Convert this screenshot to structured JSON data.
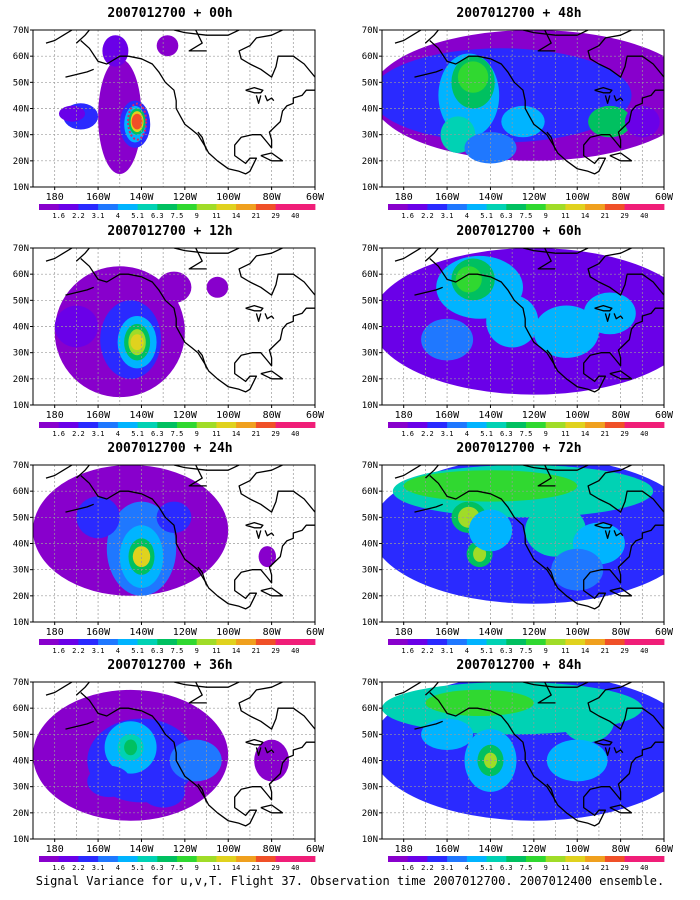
{
  "figure": {
    "caption": "Signal Variance for u,v,T. Flight 37. Observation time 2007012700. 2007012400 ensemble.",
    "colorbar_labels": [
      "1.6",
      "2.2",
      "3.1",
      "4",
      "5.1",
      "6.3",
      "7.5",
      "9",
      "11",
      "14",
      "21",
      "29",
      "40"
    ],
    "colorbar_colors": [
      "#8800cc",
      "#6a00e8",
      "#2a2aff",
      "#1f78ff",
      "#00b4ff",
      "#00d2b4",
      "#00c060",
      "#30d830",
      "#a0dc28",
      "#e0d21e",
      "#f0a01e",
      "#f05028",
      "#f01e78"
    ],
    "lat_labels": [
      "10N",
      "20N",
      "30N",
      "40N",
      "50N",
      "60N",
      "70N"
    ],
    "lon_labels": [
      "180",
      "160W",
      "140W",
      "120W",
      "100W",
      "80W",
      "60W"
    ],
    "lon_range": [
      -190,
      -60
    ],
    "lat_range": [
      10,
      70
    ]
  },
  "panels": [
    {
      "title": "2007012700 + 00h"
    },
    {
      "title": "2007012700 + 48h"
    },
    {
      "title": "2007012700 + 12h"
    },
    {
      "title": "2007012700 + 60h"
    },
    {
      "title": "2007012700 + 24h"
    },
    {
      "title": "2007012700 + 72h"
    },
    {
      "title": "2007012700 + 36h"
    },
    {
      "title": "2007012700 + 84h"
    }
  ],
  "map_layers": {
    "fields": [
      [
        [
          -150,
          37,
          10,
          22,
          0
        ],
        [
          -143,
          34,
          7,
          9,
          2
        ],
        [
          -143,
          34,
          5,
          7,
          4
        ],
        [
          -142,
          35,
          4,
          5,
          6
        ],
        [
          -142,
          35,
          3,
          4,
          9
        ],
        [
          -142,
          35,
          2.5,
          3,
          11
        ],
        [
          -168,
          37,
          8,
          5,
          2
        ],
        [
          -172,
          38,
          6,
          3,
          1
        ],
        [
          -128,
          64,
          5,
          4,
          0
        ],
        [
          -152,
          62,
          6,
          6,
          1
        ]
      ],
      [
        [
          -120,
          45,
          75,
          25,
          0
        ],
        [
          -135,
          45,
          60,
          18,
          2
        ],
        [
          -150,
          45,
          14,
          16,
          4
        ],
        [
          -148,
          50,
          10,
          10,
          6
        ],
        [
          -148,
          52,
          7,
          6,
          7
        ],
        [
          -155,
          30,
          8,
          7,
          5
        ],
        [
          -85,
          35,
          10,
          6,
          6
        ],
        [
          -125,
          35,
          10,
          6,
          4
        ],
        [
          -140,
          25,
          12,
          6,
          3
        ],
        [
          -70,
          35,
          8,
          6,
          1
        ]
      ],
      [
        [
          -150,
          38,
          30,
          25,
          0
        ],
        [
          -145,
          35,
          14,
          15,
          2
        ],
        [
          -142,
          34,
          9,
          10,
          4
        ],
        [
          -142,
          34,
          6,
          7,
          6
        ],
        [
          -142,
          34,
          4,
          5,
          8
        ],
        [
          -142,
          34,
          3,
          3,
          9
        ],
        [
          -170,
          40,
          10,
          8,
          1
        ],
        [
          -125,
          55,
          8,
          6,
          0
        ],
        [
          -105,
          55,
          5,
          4,
          0
        ]
      ],
      [
        [
          -120,
          42,
          75,
          28,
          1
        ],
        [
          -145,
          55,
          20,
          12,
          4
        ],
        [
          -148,
          58,
          10,
          8,
          6
        ],
        [
          -150,
          58,
          6,
          5,
          7
        ],
        [
          -130,
          42,
          12,
          10,
          4
        ],
        [
          -105,
          38,
          15,
          10,
          4
        ],
        [
          -85,
          45,
          12,
          8,
          4
        ],
        [
          -160,
          35,
          12,
          8,
          3
        ]
      ],
      [
        [
          -145,
          45,
          45,
          25,
          0
        ],
        [
          -140,
          38,
          16,
          18,
          3
        ],
        [
          -140,
          35,
          10,
          12,
          4
        ],
        [
          -140,
          35,
          6,
          7,
          6
        ],
        [
          -140,
          35,
          4,
          4,
          9
        ],
        [
          -160,
          50,
          10,
          8,
          2
        ],
        [
          -125,
          50,
          8,
          6,
          2
        ],
        [
          -82,
          35,
          4,
          4,
          0
        ]
      ],
      [
        [
          -120,
          45,
          75,
          28,
          2
        ],
        [
          -125,
          60,
          60,
          10,
          5
        ],
        [
          -140,
          62,
          40,
          6,
          7
        ],
        [
          -150,
          50,
          8,
          6,
          6
        ],
        [
          -150,
          50,
          5,
          4,
          8
        ],
        [
          -145,
          36,
          6,
          5,
          6
        ],
        [
          -145,
          36,
          3,
          3,
          8
        ],
        [
          -140,
          45,
          10,
          8,
          4
        ],
        [
          -110,
          45,
          14,
          10,
          5
        ],
        [
          -90,
          40,
          12,
          8,
          4
        ],
        [
          -100,
          30,
          12,
          8,
          3
        ]
      ],
      [
        [
          -145,
          42,
          45,
          25,
          0
        ],
        [
          -140,
          40,
          25,
          16,
          2
        ],
        [
          -145,
          45,
          12,
          10,
          4
        ],
        [
          -145,
          45,
          6,
          5,
          5
        ],
        [
          -145,
          45,
          3,
          3,
          6
        ],
        [
          -115,
          40,
          12,
          8,
          3
        ],
        [
          -155,
          32,
          10,
          6,
          2
        ],
        [
          -130,
          28,
          10,
          6,
          2
        ],
        [
          -80,
          40,
          8,
          8,
          0
        ]
      ],
      [
        [
          -120,
          45,
          75,
          28,
          2
        ],
        [
          -130,
          60,
          60,
          10,
          5
        ],
        [
          -145,
          62,
          25,
          5,
          7
        ],
        [
          -140,
          40,
          12,
          12,
          4
        ],
        [
          -140,
          40,
          6,
          6,
          6
        ],
        [
          -140,
          40,
          3,
          3,
          8
        ],
        [
          -95,
          55,
          12,
          8,
          5
        ],
        [
          -100,
          40,
          14,
          8,
          4
        ],
        [
          -160,
          50,
          12,
          6,
          4
        ]
      ]
    ],
    "coast": [
      [
        [
          -168,
          66
        ],
        [
          -164,
          63
        ],
        [
          -160,
          58
        ],
        [
          -156,
          57
        ],
        [
          -150,
          60
        ],
        [
          -146,
          60
        ],
        [
          -140,
          59
        ],
        [
          -135,
          57
        ],
        [
          -132,
          54
        ],
        [
          -129,
          50
        ],
        [
          -125,
          47
        ],
        [
          -124,
          43
        ],
        [
          -124,
          40
        ],
        [
          -122,
          37
        ],
        [
          -120,
          34
        ],
        [
          -117,
          32
        ],
        [
          -114,
          30
        ],
        [
          -111,
          26
        ],
        [
          -109,
          23
        ],
        [
          -105,
          20
        ],
        [
          -100,
          17
        ],
        [
          -95,
          16
        ],
        [
          -92,
          15
        ],
        [
          -90,
          16
        ],
        [
          -87,
          21
        ],
        [
          -90,
          21
        ],
        [
          -92,
          19
        ],
        [
          -97,
          22
        ],
        [
          -97,
          26
        ],
        [
          -94,
          29
        ],
        [
          -89,
          30
        ],
        [
          -85,
          30
        ],
        [
          -82,
          27
        ],
        [
          -80,
          25
        ],
        [
          -80,
          28
        ],
        [
          -81,
          31
        ],
        [
          -76,
          35
        ],
        [
          -75,
          39
        ],
        [
          -73,
          41
        ],
        [
          -70,
          42
        ],
        [
          -70,
          44
        ],
        [
          -66,
          45
        ],
        [
          -64,
          47
        ],
        [
          -60,
          47
        ]
      ],
      [
        [
          -114,
          31
        ],
        [
          -112,
          29
        ],
        [
          -110,
          24
        ]
      ],
      [
        [
          -60,
          52
        ],
        [
          -65,
          57
        ],
        [
          -70,
          60
        ],
        [
          -77,
          60
        ],
        [
          -78,
          56
        ],
        [
          -80,
          52
        ],
        [
          -85,
          55
        ],
        [
          -90,
          57
        ],
        [
          -94,
          59
        ],
        [
          -95,
          62
        ],
        [
          -90,
          64
        ],
        [
          -87,
          67
        ],
        [
          -80,
          68
        ],
        [
          -75,
          70
        ]
      ],
      [
        [
          -85,
          22
        ],
        [
          -80,
          23
        ],
        [
          -75,
          20
        ],
        [
          -80,
          20
        ],
        [
          -85,
          22
        ]
      ],
      [
        [
          -175,
          52
        ],
        [
          -170,
          53
        ],
        [
          -165,
          54
        ],
        [
          -162,
          55
        ]
      ],
      [
        [
          -125,
          70
        ],
        [
          -120,
          69
        ],
        [
          -110,
          68
        ],
        [
          -100,
          68
        ],
        [
          -95,
          70
        ]
      ],
      [
        [
          -115,
          70
        ],
        [
          -112,
          65
        ],
        [
          -118,
          62
        ],
        [
          -110,
          62
        ]
      ],
      [
        [
          -170,
          65
        ],
        [
          -166,
          68
        ],
        [
          -164,
          70
        ]
      ],
      [
        [
          -172,
          70
        ],
        [
          -176,
          68
        ],
        [
          -180,
          66
        ],
        [
          -184,
          65
        ]
      ]
    ],
    "lakes": [
      [
        [
          -92,
          47
        ],
        [
          -88,
          48
        ],
        [
          -84,
          47
        ],
        [
          -85,
          46
        ],
        [
          -88,
          46
        ],
        [
          -92,
          47
        ]
      ],
      [
        [
          -87,
          45
        ],
        [
          -86,
          42
        ],
        [
          -85,
          45
        ]
      ],
      [
        [
          -83,
          45
        ],
        [
          -82,
          43
        ],
        [
          -80,
          44
        ],
        [
          -79,
          43
        ]
      ]
    ]
  }
}
